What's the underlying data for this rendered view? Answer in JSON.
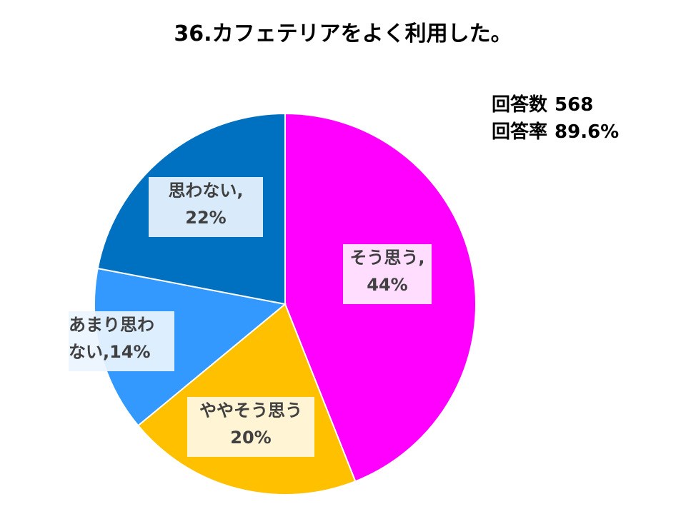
{
  "chart_data": {
    "type": "pie",
    "title": "36.カフェテリアをよく利用した。",
    "categories": [
      "そう思う",
      "ややそう思う",
      "あまり思わない",
      "思わない"
    ],
    "values": [
      44,
      20,
      14,
      22
    ],
    "value_unit": "%",
    "colors": [
      "#FF00FF",
      "#FFC000",
      "#3399FF",
      "#0070C0"
    ],
    "labels": [
      {
        "name": "そう思う,",
        "percent": "44%"
      },
      {
        "name": "ややそう思う",
        "percent": "20%"
      },
      {
        "name": "あまり思わ",
        "name2": "ない,",
        "percent": "14%"
      },
      {
        "name": "思わない,",
        "percent": "22%"
      }
    ],
    "start_angle_deg": 0,
    "direction": "clockwise",
    "legend": "none"
  },
  "stats": {
    "responses_label": "回答数",
    "responses_value": "568",
    "rate_label": "回答率",
    "rate_value": "89.6%"
  }
}
